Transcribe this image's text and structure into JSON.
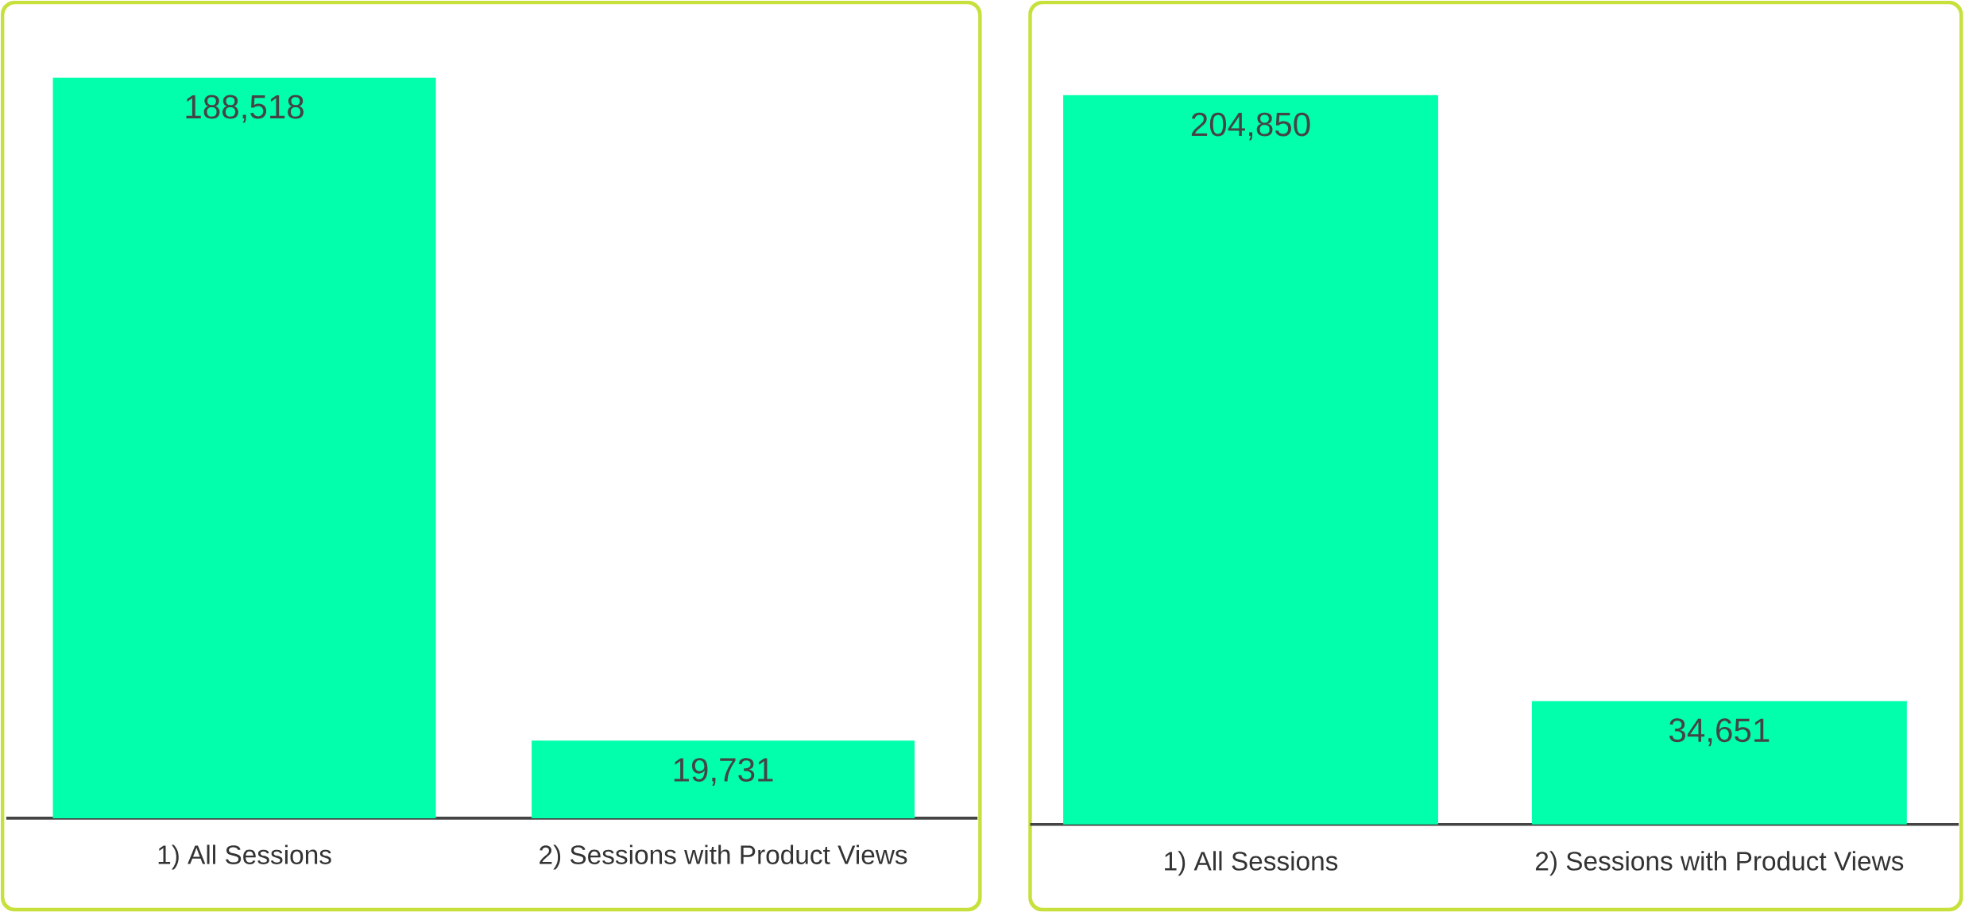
{
  "chart_data": [
    {
      "type": "bar",
      "categories": [
        "1) All Sessions",
        "2) Sessions with Product Views"
      ],
      "values": [
        188518,
        19731
      ],
      "color": "#02ffab",
      "value_labels": [
        "188,518",
        "19,731"
      ]
    },
    {
      "type": "bar",
      "categories": [
        "1) All Sessions",
        "2) Sessions with Product Views"
      ],
      "values": [
        204850,
        34651
      ],
      "color": "#02ffab",
      "value_labels": [
        "204,850",
        "34,651"
      ]
    }
  ]
}
